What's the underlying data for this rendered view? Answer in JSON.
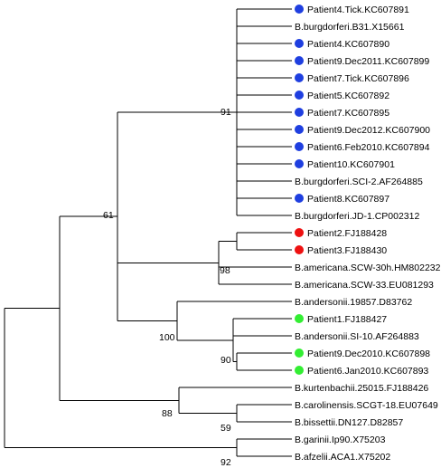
{
  "colors": {
    "line": "#000000",
    "marker_blue": "#1f3fe0",
    "marker_red": "#ee1111",
    "marker_green": "#33ee33"
  },
  "leaves": [
    {
      "label": "Patient4.Tick.KC607891",
      "marker": "blue"
    },
    {
      "label": "B.burgdorferi.B31.X15661",
      "marker": null
    },
    {
      "label": "Patient4.KC607890",
      "marker": "blue"
    },
    {
      "label": "Patient9.Dec2011.KC607899",
      "marker": "blue"
    },
    {
      "label": "Patient7.Tick.KC607896",
      "marker": "blue"
    },
    {
      "label": "Patient5.KC607892",
      "marker": "blue"
    },
    {
      "label": "Patient7.KC607895",
      "marker": "blue"
    },
    {
      "label": "Patient9.Dec2012.KC607900",
      "marker": "blue"
    },
    {
      "label": "Patient6.Feb2010.KC607894",
      "marker": "blue"
    },
    {
      "label": "Patient10.KC607901",
      "marker": "blue"
    },
    {
      "label": "B.burgdorferi.SCI-2.AF264885",
      "marker": null
    },
    {
      "label": "Patient8.KC607897",
      "marker": "blue"
    },
    {
      "label": "B.burgdorferi.JD-1.CP002312",
      "marker": null
    },
    {
      "label": "Patient2.FJ188428",
      "marker": "red"
    },
    {
      "label": "Patient3.FJ188430",
      "marker": "red"
    },
    {
      "label": "B.americana.SCW-30h.HM802232",
      "marker": null
    },
    {
      "label": "B.americana.SCW-33.EU081293",
      "marker": null
    },
    {
      "label": "B.andersonii.19857.D83762",
      "marker": null
    },
    {
      "label": "Patient1.FJ188427",
      "marker": "green"
    },
    {
      "label": "B.andersonii.SI-10.AF264883",
      "marker": null
    },
    {
      "label": "Patient9.Dec2010.KC607898",
      "marker": "green"
    },
    {
      "label": "Patient6.Jan2010.KC607893",
      "marker": "green"
    },
    {
      "label": "B.kurtenbachii.25015.FJ188426",
      "marker": null
    },
    {
      "label": "B.carolinensis.SCGT-18.EU07649",
      "marker": null
    },
    {
      "label": "B.bissettii.DN127.D82857",
      "marker": null
    },
    {
      "label": "B.garinii.Ip90.X75203",
      "marker": null
    },
    {
      "label": "B.afzelii.ACA1.X75202",
      "marker": null
    }
  ],
  "bootstrap_values": [
    "91",
    "61",
    "98",
    "100",
    "90",
    "88",
    "59",
    "92"
  ]
}
